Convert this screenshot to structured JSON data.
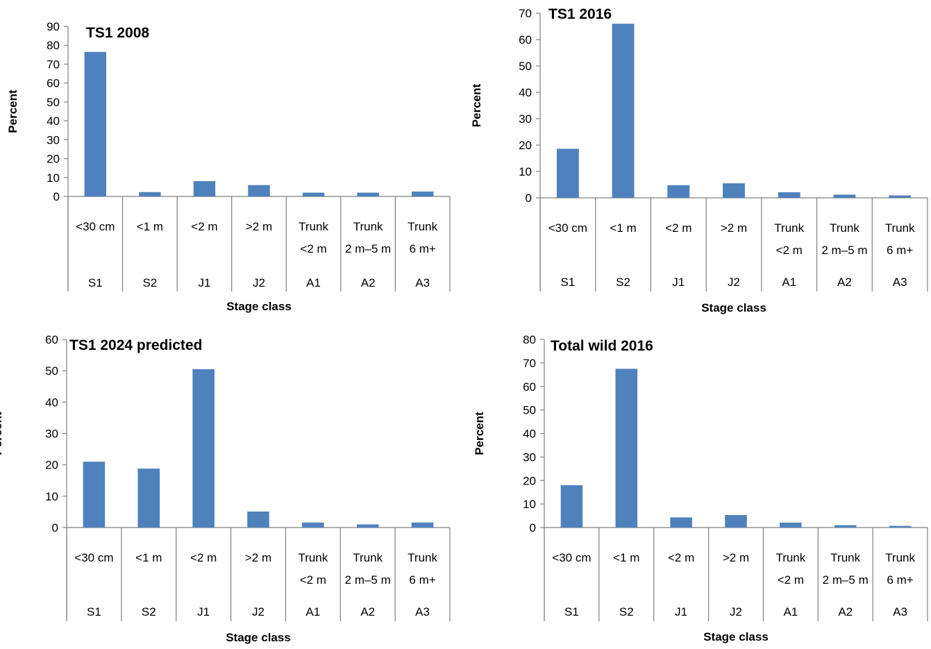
{
  "chart_data": [
    {
      "type": "bar",
      "title": "TS1 2008",
      "ylabel": "Percent",
      "xlabel": "Stage class",
      "ylim": [
        0,
        90
      ],
      "yticks": [
        0,
        10,
        20,
        30,
        40,
        50,
        60,
        70,
        80,
        90
      ],
      "categories": [
        "S1",
        "S2",
        "J1",
        "J2",
        "A1",
        "A2",
        "A3"
      ],
      "size_line1": [
        "<30 cm",
        "<1 m",
        "<2 m",
        ">2 m",
        "Trunk",
        "Trunk",
        "Trunk"
      ],
      "size_line2": [
        "",
        "",
        "",
        "",
        "<2 m",
        "2 m–5 m",
        "6 m+"
      ],
      "values": [
        76.5,
        2.3,
        8.1,
        6.0,
        2.0,
        2.0,
        2.6
      ],
      "bar_color": "#4f81bd"
    },
    {
      "type": "bar",
      "title": "TS1 2016",
      "ylabel": "Percent",
      "xlabel": "Stage class",
      "ylim": [
        0,
        70
      ],
      "yticks": [
        0,
        10,
        20,
        30,
        40,
        50,
        60,
        70
      ],
      "categories": [
        "S1",
        "S2",
        "J1",
        "J2",
        "A1",
        "A2",
        "A3"
      ],
      "size_line1": [
        "<30 cm",
        "<1 m",
        "<2 m",
        ">2 m",
        "Trunk",
        "Trunk",
        "Trunk"
      ],
      "size_line2": [
        "",
        "",
        "",
        "",
        "<2 m",
        "2 m–5 m",
        "6 m+"
      ],
      "values": [
        18.6,
        66.0,
        4.8,
        5.5,
        2.1,
        1.2,
        0.9
      ],
      "bar_color": "#4f81bd"
    },
    {
      "type": "bar",
      "title": "TS1 2024 predicted",
      "ylabel": "Percent",
      "xlabel": "Stage class",
      "ylim": [
        0,
        60
      ],
      "yticks": [
        0,
        10,
        20,
        30,
        40,
        50,
        60
      ],
      "categories": [
        "S1",
        "S2",
        "J1",
        "J2",
        "A1",
        "A2",
        "A3"
      ],
      "size_line1": [
        "<30 cm",
        "<1 m",
        "<2 m",
        ">2 m",
        "Trunk",
        "Trunk",
        "Trunk"
      ],
      "size_line2": [
        "",
        "",
        "",
        "",
        "<2 m",
        "2 m–5 m",
        "6 m+"
      ],
      "values": [
        21.0,
        18.8,
        50.5,
        5.1,
        1.6,
        1.0,
        1.6
      ],
      "bar_color": "#4f81bd"
    },
    {
      "type": "bar",
      "title": "Total wild  2016",
      "ylabel": "Percent",
      "xlabel": "Stage class",
      "ylim": [
        0,
        80
      ],
      "yticks": [
        0,
        10,
        20,
        30,
        40,
        50,
        60,
        70,
        80
      ],
      "categories": [
        "S1",
        "S2",
        "J1",
        "J2",
        "A1",
        "A2",
        "A3"
      ],
      "size_line1": [
        "<30 cm",
        "<1 m",
        "<2 m",
        ">2 m",
        "Trunk",
        "Trunk",
        "Trunk"
      ],
      "size_line2": [
        "",
        "",
        "",
        "",
        "<2 m",
        "2 m–5 m",
        "6 m+"
      ],
      "values": [
        18.0,
        67.5,
        4.3,
        5.3,
        2.1,
        1.0,
        0.7
      ],
      "bar_color": "#4f81bd"
    }
  ]
}
